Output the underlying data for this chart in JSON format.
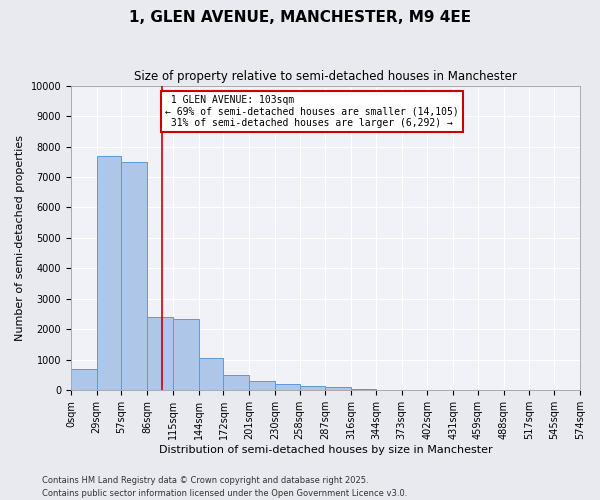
{
  "title": "1, GLEN AVENUE, MANCHESTER, M9 4EE",
  "subtitle": "Size of property relative to semi-detached houses in Manchester",
  "xlabel": "Distribution of semi-detached houses by size in Manchester",
  "ylabel": "Number of semi-detached properties",
  "footnote1": "Contains HM Land Registry data © Crown copyright and database right 2025.",
  "footnote2": "Contains public sector information licensed under the Open Government Licence v3.0.",
  "property_size": 103,
  "property_label": "1 GLEN AVENUE: 103sqm",
  "pct_smaller": 69,
  "count_smaller": 14105,
  "pct_larger": 31,
  "count_larger": 6292,
  "bin_labels": [
    "0sqm",
    "29sqm",
    "57sqm",
    "86sqm",
    "115sqm",
    "144sqm",
    "172sqm",
    "201sqm",
    "230sqm",
    "258sqm",
    "287sqm",
    "316sqm",
    "344sqm",
    "373sqm",
    "402sqm",
    "431sqm",
    "459sqm",
    "488sqm",
    "517sqm",
    "545sqm",
    "574sqm"
  ],
  "bin_edges": [
    0,
    29,
    57,
    86,
    115,
    144,
    172,
    201,
    230,
    258,
    287,
    316,
    344,
    373,
    402,
    431,
    459,
    488,
    517,
    545,
    574
  ],
  "bar_values": [
    700,
    7700,
    7500,
    2400,
    2350,
    1050,
    500,
    300,
    200,
    130,
    100,
    50,
    10,
    5,
    5,
    0,
    0,
    0,
    0,
    0
  ],
  "bar_color": "#aec6e8",
  "bar_edge_color": "#5b9bd5",
  "vline_color": "#cc0000",
  "vline_x": 103,
  "annotation_box_color": "#cc0000",
  "ylim": [
    0,
    10000
  ],
  "yticks": [
    0,
    1000,
    2000,
    3000,
    4000,
    5000,
    6000,
    7000,
    8000,
    9000,
    10000
  ],
  "bg_color": "#e8eaf0",
  "plot_bg_color": "#f0f2f7",
  "grid_color": "#ffffff",
  "title_fontsize": 11,
  "subtitle_fontsize": 8.5,
  "label_fontsize": 8,
  "tick_fontsize": 7,
  "ann_fontsize": 7,
  "footnote_fontsize": 6
}
